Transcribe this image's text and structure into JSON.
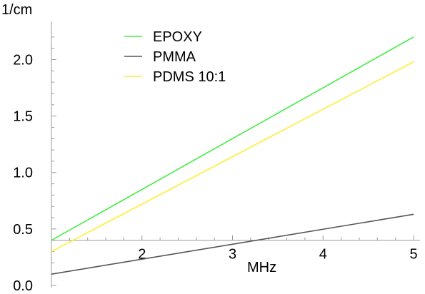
{
  "chart_data": {
    "type": "line",
    "xlabel": "MHz",
    "ylabel": "1/cm",
    "xlim": [
      1.0,
      5.0
    ],
    "ylim": [
      0.0,
      2.3
    ],
    "x_ticks": [
      "2",
      "3",
      "4",
      "5"
    ],
    "y_ticks": [
      "0.0",
      "0.5",
      "1.0",
      "1.5",
      "2.0"
    ],
    "x_axis_crosses_y_at": 0.4,
    "grid": false,
    "legend_position": "top-left-inside",
    "series": [
      {
        "name": "EPOXY",
        "color": "#44ee44",
        "x": [
          1.0,
          5.0
        ],
        "y": [
          0.4,
          2.2
        ]
      },
      {
        "name": "PMMA",
        "color": "#555555",
        "x": [
          1.0,
          5.0
        ],
        "y": [
          0.1,
          0.63
        ]
      },
      {
        "name": "PDMS 10:1",
        "color": "#ffee33",
        "x": [
          1.0,
          5.0
        ],
        "y": [
          0.3,
          1.98
        ]
      }
    ]
  }
}
